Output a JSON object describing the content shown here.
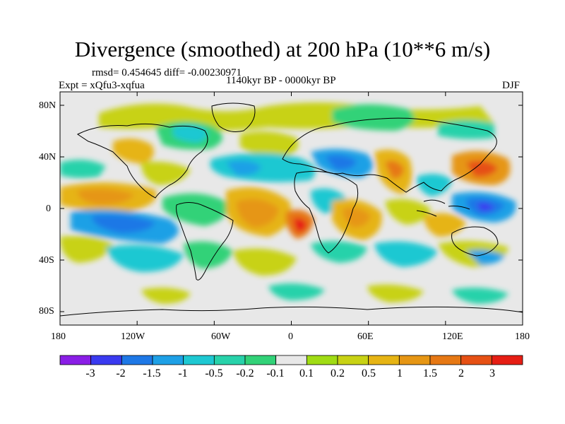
{
  "title": "Divergence (smoothed) at 200 hPa (10**6 m/s)",
  "stats": "rmsd= 0.454645 diff= -0.00230971",
  "period": "1140kyr BP - 0000kyr BP",
  "experiment": "Expt = xQfu3-xqfua",
  "season": "DJF",
  "y_ticks": [
    "80N",
    "40N",
    "0",
    "40S",
    "80S"
  ],
  "x_ticks": [
    "180",
    "120W",
    "60W",
    "0",
    "60E",
    "120E",
    "180"
  ],
  "colorbar": {
    "labels": [
      "-3",
      "-2",
      "-1.5",
      "-1",
      "-0.5",
      "-0.2",
      "-0.1",
      "0.1",
      "0.2",
      "0.5",
      "1",
      "1.5",
      "2",
      "3"
    ],
    "colors": [
      "#8a1ee6",
      "#3a3af0",
      "#1e78e6",
      "#1ea0e6",
      "#1ec8d2",
      "#28d2aa",
      "#32d278",
      "#e8e8e8",
      "#a0dc14",
      "#c8d214",
      "#e6b414",
      "#e69614",
      "#e67814",
      "#e65014",
      "#e61e14"
    ]
  },
  "colors": {
    "land_outline": "#000000",
    "near_zero": "#e8e8e8"
  }
}
